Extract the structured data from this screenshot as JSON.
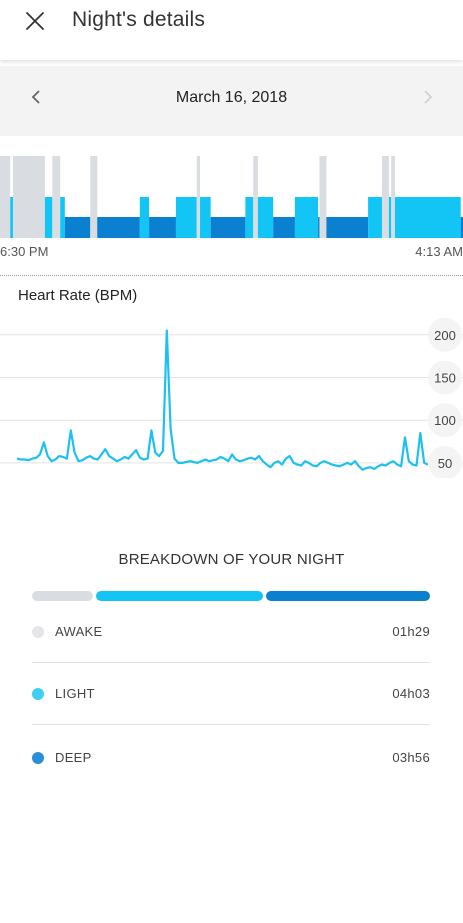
{
  "header": {
    "title": "Night's details",
    "close_icon": "close-icon"
  },
  "date_nav": {
    "date": "March 16, 2018",
    "prev_icon": "chevron-left-icon",
    "next_icon": "chevron-right-icon"
  },
  "colors": {
    "awake": "#d9dde1",
    "light": "#12c5f5",
    "deep": "#0b7fd0",
    "heart_line": "#1ec0f2",
    "grid": "#e4e4e4"
  },
  "sleep_timeline": {
    "start_label": "6:30 PM",
    "end_label": "4:13 AM",
    "segments": [
      {
        "stage": "awake",
        "from": 0.0,
        "to": 0.022
      },
      {
        "stage": "light",
        "from": 0.022,
        "to": 0.028
      },
      {
        "stage": "awake",
        "from": 0.028,
        "to": 0.097
      },
      {
        "stage": "light",
        "from": 0.097,
        "to": 0.113
      },
      {
        "stage": "awake",
        "from": 0.113,
        "to": 0.13
      },
      {
        "stage": "light",
        "from": 0.13,
        "to": 0.14
      },
      {
        "stage": "deep",
        "from": 0.14,
        "to": 0.195
      },
      {
        "stage": "awake",
        "from": 0.195,
        "to": 0.21
      },
      {
        "stage": "deep",
        "from": 0.21,
        "to": 0.302
      },
      {
        "stage": "light",
        "from": 0.302,
        "to": 0.322
      },
      {
        "stage": "deep",
        "from": 0.322,
        "to": 0.38
      },
      {
        "stage": "light",
        "from": 0.38,
        "to": 0.425
      },
      {
        "stage": "awake",
        "from": 0.425,
        "to": 0.432
      },
      {
        "stage": "light",
        "from": 0.432,
        "to": 0.455
      },
      {
        "stage": "deep",
        "from": 0.455,
        "to": 0.53
      },
      {
        "stage": "light",
        "from": 0.53,
        "to": 0.547
      },
      {
        "stage": "awake",
        "from": 0.547,
        "to": 0.557
      },
      {
        "stage": "light",
        "from": 0.557,
        "to": 0.59
      },
      {
        "stage": "deep",
        "from": 0.59,
        "to": 0.637
      },
      {
        "stage": "light",
        "from": 0.637,
        "to": 0.687
      },
      {
        "stage": "deep",
        "from": 0.687,
        "to": 0.69
      },
      {
        "stage": "awake",
        "from": 0.69,
        "to": 0.705
      },
      {
        "stage": "deep",
        "from": 0.705,
        "to": 0.795
      },
      {
        "stage": "light",
        "from": 0.795,
        "to": 0.825
      },
      {
        "stage": "awake",
        "from": 0.825,
        "to": 0.84
      },
      {
        "stage": "light",
        "from": 0.84,
        "to": 0.845
      },
      {
        "stage": "awake",
        "from": 0.845,
        "to": 0.853
      },
      {
        "stage": "light",
        "from": 0.853,
        "to": 0.995
      },
      {
        "stage": "deep",
        "from": 0.995,
        "to": 1.0
      }
    ]
  },
  "heart_rate": {
    "title": "Heart Rate (BPM)",
    "y_ticks": [
      200,
      150,
      100,
      50
    ],
    "ylim": [
      37,
      215
    ],
    "values": [
      55,
      54,
      54,
      53,
      55,
      56,
      60,
      74,
      58,
      52,
      54,
      58,
      57,
      55,
      88,
      62,
      52,
      53,
      56,
      58,
      55,
      54,
      60,
      66,
      58,
      55,
      52,
      54,
      57,
      55,
      60,
      65,
      56,
      54,
      55,
      88,
      62,
      58,
      64,
      205,
      90,
      55,
      50,
      50,
      51,
      52,
      51,
      50,
      52,
      54,
      52,
      53,
      54,
      57,
      55,
      52,
      60,
      54,
      52,
      53,
      55,
      56,
      54,
      58,
      52,
      48,
      45,
      50,
      52,
      48,
      55,
      58,
      50,
      48,
      47,
      52,
      50,
      47,
      46,
      50,
      52,
      50,
      48,
      47,
      46,
      48,
      50,
      48,
      52,
      46,
      42,
      44,
      45,
      43,
      46,
      48,
      47,
      50,
      52,
      48,
      46,
      80,
      52,
      48,
      47,
      85,
      50,
      48
    ]
  },
  "breakdown": {
    "title": "BREAKDOWN OF YOUR NIGHT",
    "items": [
      {
        "key": "awake",
        "label": "AWAKE",
        "duration": "01h29",
        "minutes": 89
      },
      {
        "key": "light",
        "label": "LIGHT",
        "duration": "04h03",
        "minutes": 243
      },
      {
        "key": "deep",
        "label": "DEEP",
        "duration": "03h56",
        "minutes": 236
      }
    ]
  }
}
